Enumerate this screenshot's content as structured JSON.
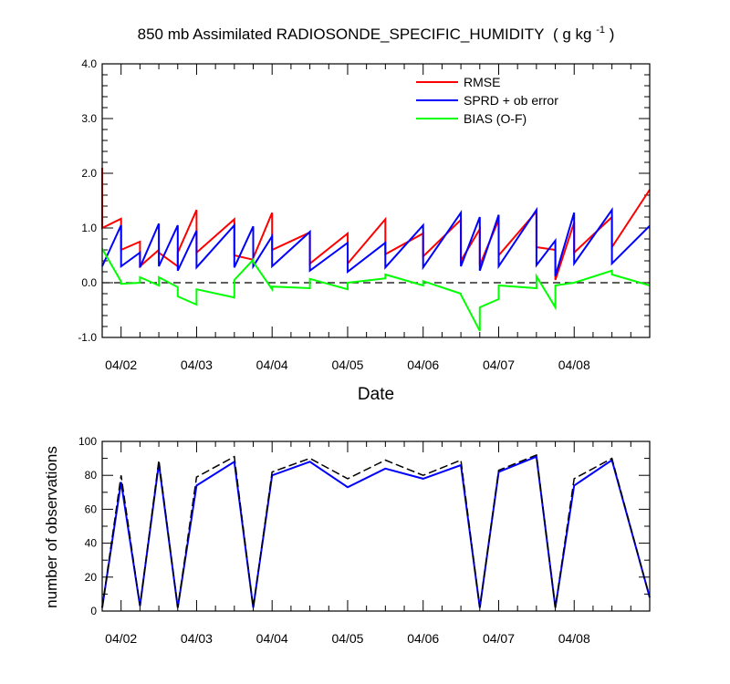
{
  "chart_data": [
    {
      "type": "line",
      "title": "850 mb Assimilated RADIOSONDE_SPECIFIC_HUMIDITY",
      "title_units": "( g kg",
      "title_units_sup": "-1",
      "title_units_close": " )",
      "xlabel": "Date",
      "ylabel": "",
      "xlim": [
        0.0,
        7.25
      ],
      "ylim": [
        -1.0,
        4.0
      ],
      "ytick_values": [
        -1.0,
        0.0,
        1.0,
        2.0,
        3.0,
        4.0
      ],
      "ytick_labels": [
        "-1.0",
        "0.0",
        "1.0",
        "2.0",
        "3.0",
        "4.0"
      ],
      "xtick_values": [
        0.25,
        1.25,
        2.25,
        3.25,
        4.25,
        5.25,
        6.25
      ],
      "xtick_labels": [
        "04/02",
        "04/03",
        "04/04",
        "04/05",
        "04/06",
        "04/07",
        "04/08"
      ],
      "reference_line": {
        "y": 0.0,
        "style": "dashed"
      },
      "legend": {
        "position": "top-right",
        "entries": [
          "RMSE",
          "SPRD + ob error",
          "BIAS (O-F)"
        ]
      },
      "colors": {
        "RMSE": "#ff0000",
        "SPRD + ob error": "#0000ff",
        "BIAS (O-F)": "#00ff00",
        "zero": "#000000"
      },
      "series": [
        {
          "name": "RMSE",
          "points": [
            [
              0.0,
              2.1
            ],
            [
              0.0,
              1.0
            ],
            [
              0.25,
              1.17
            ],
            [
              0.25,
              0.6
            ],
            [
              0.5,
              0.75
            ],
            [
              0.5,
              0.3
            ],
            [
              0.75,
              0.6
            ],
            [
              0.75,
              0.55
            ],
            [
              1.0,
              0.3
            ],
            [
              1.0,
              0.55
            ],
            [
              1.25,
              1.33
            ],
            [
              1.25,
              0.55
            ],
            [
              1.75,
              1.16
            ],
            [
              1.75,
              0.5
            ],
            [
              2.0,
              0.42
            ],
            [
              2.0,
              0.45
            ],
            [
              2.25,
              1.28
            ],
            [
              2.25,
              0.6
            ],
            [
              2.75,
              0.92
            ],
            [
              2.75,
              0.35
            ],
            [
              3.25,
              0.9
            ],
            [
              3.25,
              0.35
            ],
            [
              3.75,
              1.16
            ],
            [
              3.75,
              0.52
            ],
            [
              4.25,
              0.9
            ],
            [
              4.25,
              0.48
            ],
            [
              4.75,
              1.15
            ],
            [
              4.75,
              0.4
            ],
            [
              5.0,
              0.98
            ],
            [
              5.0,
              0.32
            ],
            [
              5.25,
              1.15
            ],
            [
              5.25,
              0.5
            ],
            [
              5.75,
              1.3
            ],
            [
              5.75,
              0.65
            ],
            [
              6.0,
              0.6
            ],
            [
              6.0,
              0.05
            ],
            [
              6.25,
              1.1
            ],
            [
              6.25,
              0.55
            ],
            [
              6.75,
              1.2
            ],
            [
              6.75,
              0.65
            ],
            [
              7.25,
              1.7
            ]
          ]
        },
        {
          "name": "SPRD + ob error",
          "points": [
            [
              0.0,
              0.3
            ],
            [
              0.25,
              1.05
            ],
            [
              0.25,
              0.3
            ],
            [
              0.5,
              0.55
            ],
            [
              0.5,
              0.28
            ],
            [
              0.75,
              1.08
            ],
            [
              0.75,
              0.3
            ],
            [
              1.0,
              1.05
            ],
            [
              1.0,
              0.22
            ],
            [
              1.25,
              0.95
            ],
            [
              1.25,
              0.28
            ],
            [
              1.75,
              1.05
            ],
            [
              1.75,
              0.28
            ],
            [
              2.0,
              1.03
            ],
            [
              2.0,
              0.3
            ],
            [
              2.25,
              0.85
            ],
            [
              2.25,
              0.3
            ],
            [
              2.75,
              0.93
            ],
            [
              2.75,
              0.22
            ],
            [
              3.25,
              0.73
            ],
            [
              3.25,
              0.2
            ],
            [
              3.75,
              0.73
            ],
            [
              3.75,
              0.28
            ],
            [
              4.25,
              1.05
            ],
            [
              4.25,
              0.28
            ],
            [
              4.75,
              1.28
            ],
            [
              4.75,
              0.3
            ],
            [
              5.0,
              1.2
            ],
            [
              5.0,
              0.22
            ],
            [
              5.25,
              1.24
            ],
            [
              5.25,
              0.3
            ],
            [
              5.75,
              1.33
            ],
            [
              5.75,
              0.32
            ],
            [
              6.0,
              0.77
            ],
            [
              6.0,
              0.12
            ],
            [
              6.25,
              1.28
            ],
            [
              6.25,
              0.35
            ],
            [
              6.75,
              1.33
            ],
            [
              6.75,
              0.35
            ],
            [
              7.25,
              1.04
            ]
          ]
        },
        {
          "name": "BIAS (O-F)",
          "points": [
            [
              0.0,
              0.62
            ],
            [
              0.25,
              0.02
            ],
            [
              0.25,
              -0.02
            ],
            [
              0.5,
              0.0
            ],
            [
              0.5,
              0.1
            ],
            [
              0.75,
              -0.05
            ],
            [
              0.75,
              0.1
            ],
            [
              1.0,
              -0.08
            ],
            [
              1.0,
              -0.25
            ],
            [
              1.25,
              -0.4
            ],
            [
              1.25,
              -0.12
            ],
            [
              1.75,
              -0.27
            ],
            [
              1.75,
              0.05
            ],
            [
              2.0,
              0.42
            ],
            [
              2.0,
              0.38
            ],
            [
              2.25,
              -0.12
            ],
            [
              2.25,
              -0.07
            ],
            [
              2.75,
              -0.1
            ],
            [
              2.75,
              0.07
            ],
            [
              3.25,
              -0.12
            ],
            [
              3.25,
              0.0
            ],
            [
              3.75,
              0.08
            ],
            [
              3.75,
              0.15
            ],
            [
              4.25,
              -0.05
            ],
            [
              4.25,
              0.03
            ],
            [
              4.75,
              -0.2
            ],
            [
              4.75,
              -0.22
            ],
            [
              5.0,
              -0.88
            ],
            [
              5.0,
              -0.45
            ],
            [
              5.25,
              -0.3
            ],
            [
              5.25,
              -0.05
            ],
            [
              5.75,
              -0.1
            ],
            [
              5.75,
              0.12
            ],
            [
              6.0,
              -0.45
            ],
            [
              6.0,
              -0.05
            ],
            [
              6.25,
              0.0
            ],
            [
              6.75,
              0.22
            ],
            [
              6.75,
              0.15
            ],
            [
              7.25,
              -0.05
            ]
          ]
        }
      ]
    },
    {
      "type": "line",
      "title": "",
      "xlabel": "",
      "ylabel": "number of observations",
      "xlim": [
        0.0,
        7.25
      ],
      "ylim": [
        0,
        100
      ],
      "ytick_values": [
        0,
        20,
        40,
        60,
        80,
        100
      ],
      "ytick_labels": [
        "0",
        "20",
        "40",
        "60",
        "80",
        "100"
      ],
      "xtick_values": [
        0.25,
        1.25,
        2.25,
        3.25,
        4.25,
        5.25,
        6.25
      ],
      "xtick_labels": [
        "04/02",
        "04/03",
        "04/04",
        "04/05",
        "04/06",
        "04/07",
        "04/08"
      ],
      "colors": {
        "used": "#0000ff",
        "possible": "#000000"
      },
      "series": [
        {
          "name": "used",
          "style": "solid",
          "points": [
            [
              0.0,
              2
            ],
            [
              0.25,
              76
            ],
            [
              0.5,
              3
            ],
            [
              0.75,
              87
            ],
            [
              1.0,
              2
            ],
            [
              1.25,
              74
            ],
            [
              1.75,
              88
            ],
            [
              2.0,
              2
            ],
            [
              2.25,
              80
            ],
            [
              2.75,
              88
            ],
            [
              3.25,
              73
            ],
            [
              3.75,
              84
            ],
            [
              4.25,
              78
            ],
            [
              4.75,
              86
            ],
            [
              5.0,
              2
            ],
            [
              5.25,
              82
            ],
            [
              5.75,
              91
            ],
            [
              6.0,
              2
            ],
            [
              6.25,
              74
            ],
            [
              6.75,
              89
            ],
            [
              7.25,
              8
            ]
          ]
        },
        {
          "name": "possible",
          "style": "dashed",
          "points": [
            [
              0.0,
              2
            ],
            [
              0.25,
              80
            ],
            [
              0.5,
              3
            ],
            [
              0.75,
              89
            ],
            [
              1.0,
              2
            ],
            [
              1.25,
              79
            ],
            [
              1.75,
              91
            ],
            [
              2.0,
              2
            ],
            [
              2.25,
              82
            ],
            [
              2.75,
              90
            ],
            [
              3.25,
              78
            ],
            [
              3.75,
              89
            ],
            [
              4.25,
              80
            ],
            [
              4.75,
              89
            ],
            [
              5.0,
              2
            ],
            [
              5.25,
              83
            ],
            [
              5.75,
              92
            ],
            [
              6.0,
              2
            ],
            [
              6.25,
              78
            ],
            [
              6.75,
              90
            ],
            [
              7.25,
              8
            ]
          ]
        }
      ]
    }
  ]
}
